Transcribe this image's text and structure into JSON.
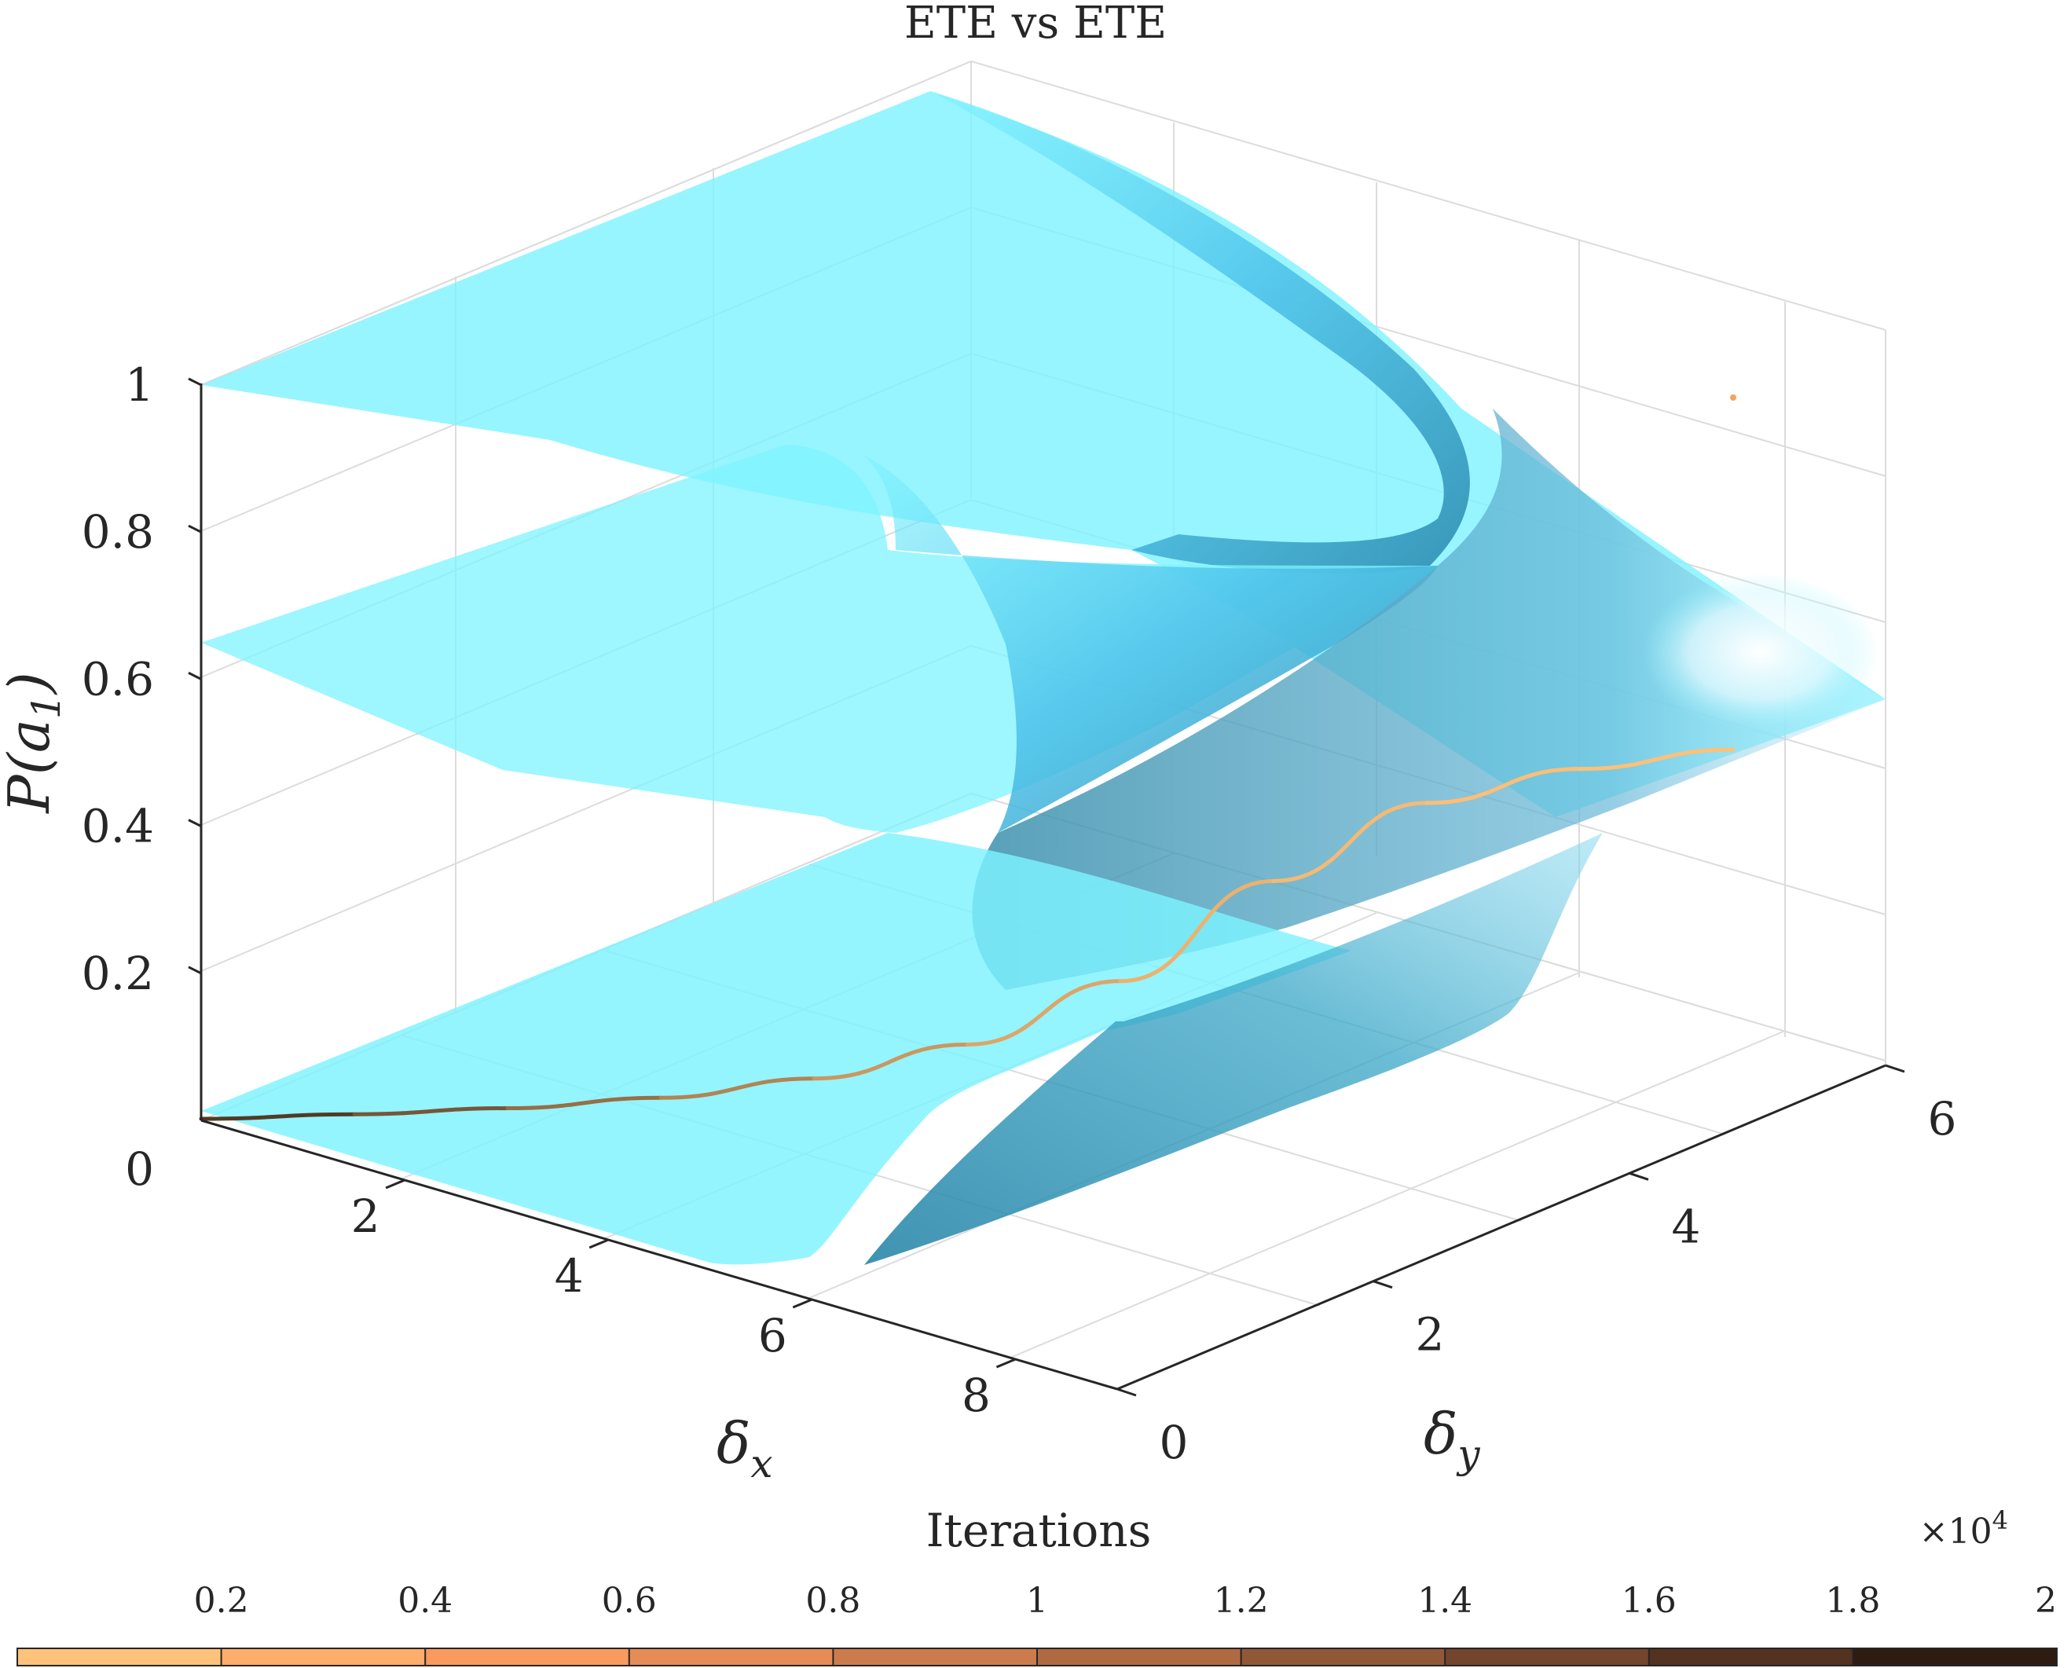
{
  "chart_data": {
    "type": "surface3d",
    "title": "ETE vs ETE",
    "axes": {
      "x": {
        "label_symbol": "δ",
        "label_sub": "x",
        "ticks": [
          "2",
          "4",
          "6",
          "8"
        ],
        "zero_tick": "0",
        "range": [
          0,
          9
        ]
      },
      "y": {
        "label_symbol": "δ",
        "label_sub": "y",
        "ticks": [
          "0",
          "2",
          "4",
          "6"
        ],
        "range": [
          0,
          6
        ]
      },
      "z": {
        "label_main": "P(a",
        "label_sub": "1",
        "label_end": ")",
        "ticks": [
          "0.2",
          "0.4",
          "0.6",
          "0.8",
          "1"
        ],
        "range": [
          0,
          1
        ]
      }
    },
    "grid": true,
    "surface_color": "#7df3ff",
    "surface_shadow_color": "#2a86a8",
    "trajectory": {
      "color_start": "#ffc078",
      "color_end": "#2a1a12",
      "points_z": [
        0.0,
        0.0,
        0.002,
        0.01,
        0.03,
        0.07,
        0.15,
        0.28,
        0.38,
        0.42,
        0.44
      ]
    },
    "colorbar": {
      "label": "Iterations",
      "ticks": [
        "0.2",
        "0.4",
        "0.6",
        "0.8",
        "1",
        "1.2",
        "1.4",
        "1.6",
        "1.8",
        "2"
      ],
      "exponent_base": "×10",
      "exponent": "4",
      "range": [
        0,
        2
      ],
      "colors": [
        "#ffc27a",
        "#ffad6b",
        "#f99a5e",
        "#e58c57",
        "#cc7b4c",
        "#b06a42",
        "#915838",
        "#72452c",
        "#533220",
        "#2e1c13"
      ]
    }
  }
}
